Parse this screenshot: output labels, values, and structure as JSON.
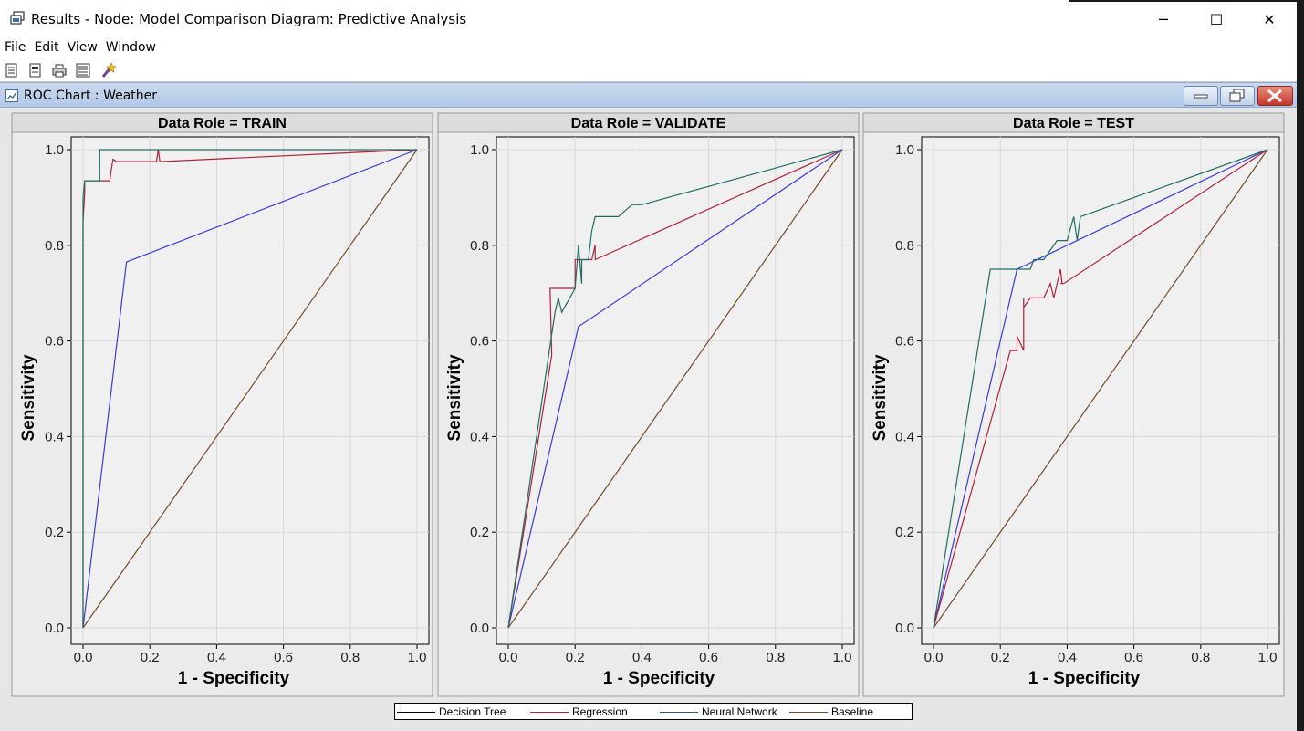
{
  "window": {
    "title": "Results - Node: Model Comparison  Diagram: Predictive Analysis",
    "minimize_glyph": "─",
    "maximize_glyph": "☐",
    "close_glyph": "✕"
  },
  "menu": {
    "items": [
      "File",
      "Edit",
      "View",
      "Window"
    ]
  },
  "toolbar": {
    "buttons": [
      "new-document-icon",
      "open-document-icon",
      "print-icon",
      "properties-icon",
      "magic-wand-icon"
    ]
  },
  "inner_window": {
    "title": "ROC Chart : Weather"
  },
  "chart_data": [
    {
      "type": "line",
      "title": "Data Role = TRAIN",
      "xlabel": "1 - Specificity",
      "ylabel": "Sensitivity",
      "xlim": [
        0,
        1
      ],
      "ylim": [
        0,
        1
      ],
      "xticks": [
        "0.0",
        "0.2",
        "0.4",
        "0.6",
        "0.8",
        "1.0"
      ],
      "yticks": [
        "0.0",
        "0.2",
        "0.4",
        "0.6",
        "0.8",
        "1.0"
      ],
      "grid": true,
      "series": [
        {
          "name": "Decision Tree",
          "color": "#3b3bd6",
          "x": [
            0,
            0.13,
            1
          ],
          "y": [
            0,
            0.765,
            1
          ]
        },
        {
          "name": "Regression",
          "color": "#b0213a",
          "x": [
            0,
            0,
            0.005,
            0.005,
            0.02,
            0.08,
            0.085,
            0.09,
            0.1,
            0.22,
            0.225,
            0.23,
            1
          ],
          "y": [
            0,
            0.85,
            0.91,
            0.935,
            0.935,
            0.935,
            0.96,
            0.98,
            0.975,
            0.975,
            1.0,
            0.975,
            1
          ]
        },
        {
          "name": "Neural Network",
          "color": "#1f6e62",
          "x": [
            0,
            0,
            0.005,
            0.02,
            0.05,
            0.05,
            1
          ],
          "y": [
            0,
            0.9,
            0.935,
            0.935,
            0.935,
            1.0,
            1
          ]
        },
        {
          "name": "Baseline",
          "color": "#7a4a2a",
          "x": [
            0,
            1
          ],
          "y": [
            0,
            1
          ]
        }
      ]
    },
    {
      "type": "line",
      "title": "Data Role = VALIDATE",
      "xlabel": "1 - Specificity",
      "ylabel": "Sensitivity",
      "xlim": [
        0,
        1
      ],
      "ylim": [
        0,
        1
      ],
      "xticks": [
        "0.0",
        "0.2",
        "0.4",
        "0.6",
        "0.8",
        "1.0"
      ],
      "yticks": [
        "0.0",
        "0.2",
        "0.4",
        "0.6",
        "0.8",
        "1.0"
      ],
      "grid": true,
      "series": [
        {
          "name": "Decision Tree",
          "color": "#3b3bd6",
          "x": [
            0,
            0.21,
            1
          ],
          "y": [
            0,
            0.63,
            1
          ]
        },
        {
          "name": "Regression",
          "color": "#b0213a",
          "x": [
            0,
            0.13,
            0.125,
            0.135,
            0.15,
            0.2,
            0.2,
            0.22,
            0.23,
            0.25,
            0.26,
            0.26,
            1
          ],
          "y": [
            0,
            0.57,
            0.71,
            0.71,
            0.71,
            0.71,
            0.77,
            0.77,
            0.77,
            0.77,
            0.8,
            0.77,
            1
          ]
        },
        {
          "name": "Neural Network",
          "color": "#1f6e62",
          "x": [
            0,
            0.14,
            0.15,
            0.16,
            0.2,
            0.21,
            0.22,
            0.22,
            0.24,
            0.25,
            0.26,
            0.3,
            0.33,
            0.37,
            0.4,
            1
          ],
          "y": [
            0,
            0.66,
            0.69,
            0.66,
            0.71,
            0.8,
            0.72,
            0.77,
            0.77,
            0.83,
            0.86,
            0.86,
            0.86,
            0.885,
            0.885,
            1
          ]
        },
        {
          "name": "Baseline",
          "color": "#7a4a2a",
          "x": [
            0,
            1
          ],
          "y": [
            0,
            1
          ]
        }
      ]
    },
    {
      "type": "line",
      "title": "Data Role = TEST",
      "xlabel": "1 - Specificity",
      "ylabel": "Sensitivity",
      "xlim": [
        0,
        1
      ],
      "ylim": [
        0,
        1
      ],
      "xticks": [
        "0.0",
        "0.2",
        "0.4",
        "0.6",
        "0.8",
        "1.0"
      ],
      "yticks": [
        "0.0",
        "0.2",
        "0.4",
        "0.6",
        "0.8",
        "1.0"
      ],
      "grid": true,
      "series": [
        {
          "name": "Decision Tree",
          "color": "#3b3bd6",
          "x": [
            0,
            0.25,
            1
          ],
          "y": [
            0,
            0.75,
            1
          ]
        },
        {
          "name": "Regression",
          "color": "#b0213a",
          "x": [
            0,
            0.23,
            0.25,
            0.25,
            0.27,
            0.27,
            0.27,
            0.29,
            0.33,
            0.35,
            0.36,
            0.38,
            0.385,
            0.38,
            0.39,
            1
          ],
          "y": [
            0,
            0.58,
            0.58,
            0.61,
            0.58,
            0.69,
            0.67,
            0.69,
            0.69,
            0.72,
            0.69,
            0.75,
            0.72,
            0.72,
            0.72,
            1
          ]
        },
        {
          "name": "Neural Network",
          "color": "#1f6e62",
          "x": [
            0,
            0.17,
            0.25,
            0.26,
            0.29,
            0.3,
            0.33,
            0.37,
            0.4,
            0.42,
            0.43,
            0.44,
            1
          ],
          "y": [
            0,
            0.75,
            0.75,
            0.75,
            0.75,
            0.77,
            0.77,
            0.81,
            0.81,
            0.86,
            0.81,
            0.86,
            1
          ]
        },
        {
          "name": "Baseline",
          "color": "#7a4a2a",
          "x": [
            0,
            1
          ],
          "y": [
            0,
            1
          ]
        }
      ]
    }
  ],
  "legend": {
    "items": [
      {
        "label": "Decision Tree",
        "color": "#000000"
      },
      {
        "label": "Regression",
        "color": "#b0213a"
      },
      {
        "label": "Neural Network",
        "color": "#1f5f8a"
      },
      {
        "label": "Baseline",
        "color": "#7a4a2a"
      }
    ]
  }
}
